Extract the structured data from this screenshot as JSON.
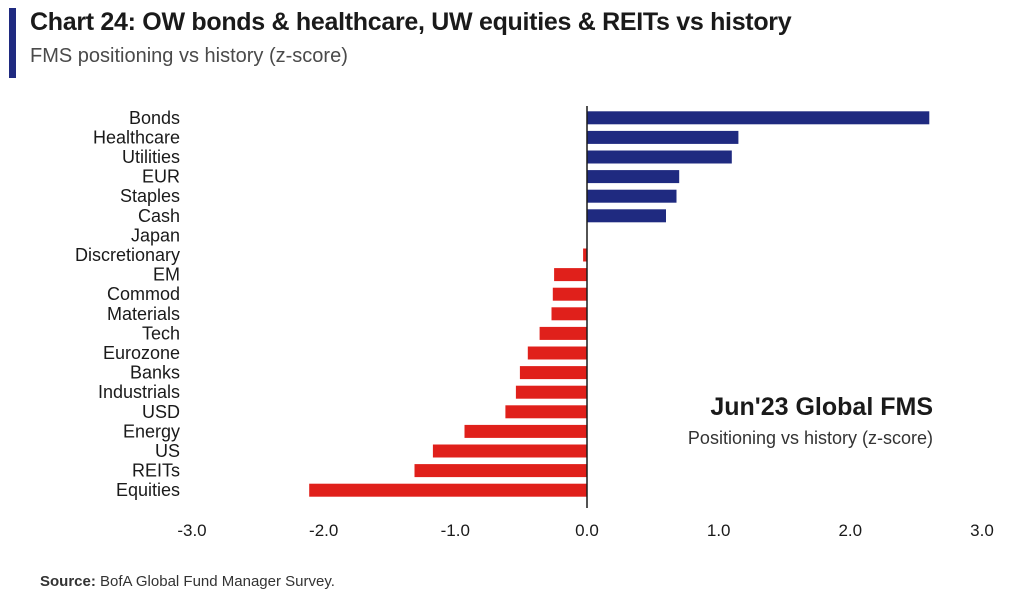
{
  "header": {
    "title": "Chart 24: OW bonds & healthcare, UW equities & REITs vs history",
    "subtitle": "FMS positioning vs history (z-score)"
  },
  "annotation": {
    "title": "Jun'23 Global FMS",
    "subtitle": "Positioning vs history (z-score)"
  },
  "footer": {
    "source_label": "Source:",
    "source_text": "BofA Global Fund Manager Survey."
  },
  "colors": {
    "positive": "#1f2a80",
    "negative": "#e0201b",
    "accent": "#1f2a80"
  },
  "chart_data": {
    "type": "bar",
    "orientation": "horizontal",
    "categories": [
      "Bonds",
      "Healthcare",
      "Utilities",
      "EUR",
      "Staples",
      "Cash",
      "Japan",
      "Discretionary",
      "EM",
      "Commod",
      "Materials",
      "Tech",
      "Eurozone",
      "Banks",
      "Industrials",
      "USD",
      "Energy",
      "US",
      "REITs",
      "Equities"
    ],
    "values": [
      2.6,
      1.15,
      1.1,
      0.7,
      0.68,
      0.6,
      0.0,
      -0.03,
      -0.25,
      -0.26,
      -0.27,
      -0.36,
      -0.45,
      -0.51,
      -0.54,
      -0.62,
      -0.93,
      -1.17,
      -1.31,
      -2.11
    ],
    "xlim": [
      -3.0,
      3.0
    ],
    "xticks": [
      "-3.0",
      "-2.0",
      "-1.0",
      "0.0",
      "1.0",
      "2.0",
      "3.0"
    ],
    "xtick_values": [
      -3,
      -2,
      -1,
      0,
      1,
      2,
      3
    ],
    "title": "",
    "xlabel": "",
    "ylabel": "",
    "grid": false,
    "legend": "none"
  }
}
